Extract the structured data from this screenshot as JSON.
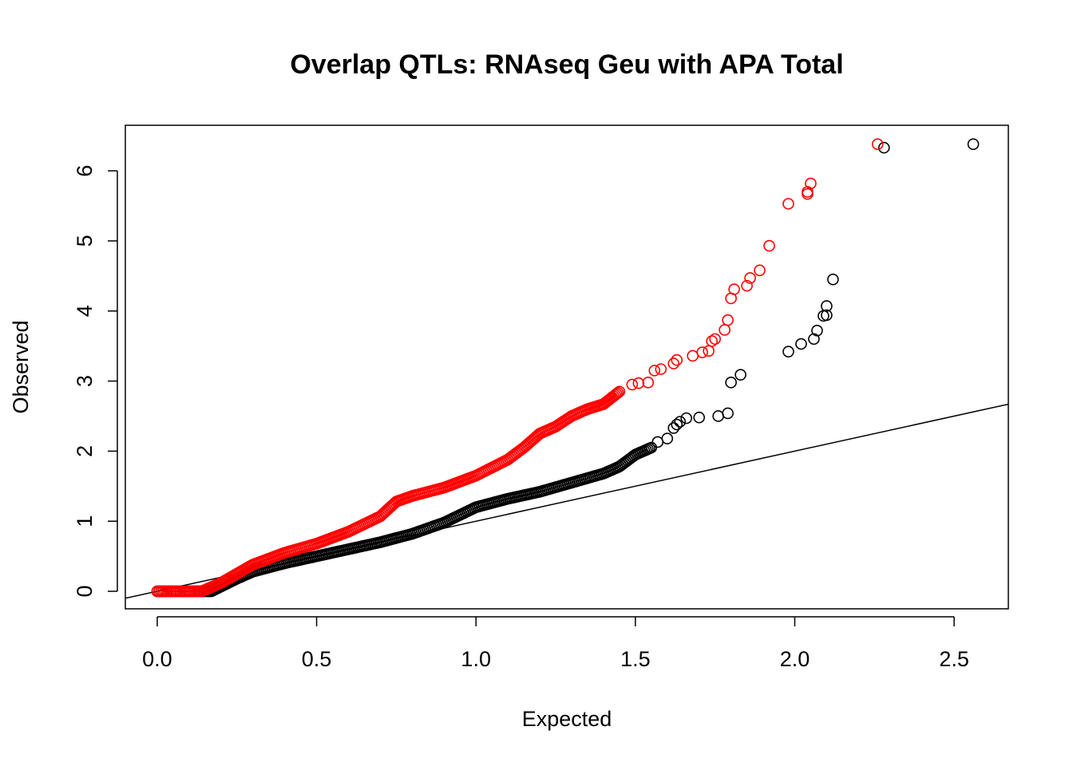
{
  "chart_data": {
    "type": "scatter",
    "title": "Overlap QTLs: RNAseq Geu with APA Total",
    "xlabel": "Expected",
    "ylabel": "Observed",
    "xlim": [
      -0.1,
      2.67
    ],
    "ylim": [
      -0.25,
      6.65
    ],
    "xticks": [
      "0.0",
      "0.5",
      "1.0",
      "1.5",
      "2.0",
      "2.5"
    ],
    "yticks": [
      "0",
      "1",
      "2",
      "3",
      "4",
      "5",
      "6"
    ],
    "grid": false,
    "legend": "none",
    "reference_line": {
      "intercept": 0,
      "slope": 1,
      "color": "#000000"
    },
    "series": [
      {
        "color": "#000000",
        "curve": [
          [
            0.0,
            0.0
          ],
          [
            0.17,
            0.0
          ],
          [
            0.25,
            0.18
          ],
          [
            0.3,
            0.28
          ],
          [
            0.4,
            0.4
          ],
          [
            0.5,
            0.5
          ],
          [
            0.6,
            0.6
          ],
          [
            0.7,
            0.7
          ],
          [
            0.8,
            0.82
          ],
          [
            0.9,
            0.98
          ],
          [
            1.0,
            1.2
          ],
          [
            1.1,
            1.32
          ],
          [
            1.2,
            1.42
          ],
          [
            1.3,
            1.55
          ],
          [
            1.4,
            1.68
          ],
          [
            1.45,
            1.78
          ],
          [
            1.5,
            1.95
          ],
          [
            1.55,
            2.05
          ]
        ],
        "points": [
          [
            1.57,
            2.13
          ],
          [
            1.6,
            2.18
          ],
          [
            1.62,
            2.33
          ],
          [
            1.63,
            2.38
          ],
          [
            1.64,
            2.42
          ],
          [
            1.66,
            2.47
          ],
          [
            1.7,
            2.48
          ],
          [
            1.76,
            2.5
          ],
          [
            1.79,
            2.54
          ],
          [
            1.8,
            2.98
          ],
          [
            1.83,
            3.09
          ],
          [
            1.98,
            3.42
          ],
          [
            2.02,
            3.53
          ],
          [
            2.06,
            3.6
          ],
          [
            2.07,
            3.72
          ],
          [
            2.09,
            3.93
          ],
          [
            2.1,
            3.94
          ],
          [
            2.1,
            4.07
          ],
          [
            2.12,
            4.45
          ],
          [
            2.28,
            6.33
          ],
          [
            2.56,
            6.38
          ]
        ]
      },
      {
        "color": "#ff0000",
        "curve": [
          [
            0.0,
            0.0
          ],
          [
            0.14,
            0.0
          ],
          [
            0.2,
            0.12
          ],
          [
            0.25,
            0.25
          ],
          [
            0.3,
            0.38
          ],
          [
            0.4,
            0.55
          ],
          [
            0.5,
            0.68
          ],
          [
            0.6,
            0.85
          ],
          [
            0.7,
            1.07
          ],
          [
            0.75,
            1.28
          ],
          [
            0.8,
            1.36
          ],
          [
            0.9,
            1.48
          ],
          [
            1.0,
            1.65
          ],
          [
            1.1,
            1.88
          ],
          [
            1.15,
            2.05
          ],
          [
            1.2,
            2.25
          ],
          [
            1.25,
            2.35
          ],
          [
            1.3,
            2.5
          ],
          [
            1.35,
            2.6
          ],
          [
            1.4,
            2.67
          ],
          [
            1.45,
            2.85
          ]
        ],
        "points": [
          [
            1.49,
            2.95
          ],
          [
            1.51,
            2.97
          ],
          [
            1.54,
            2.98
          ],
          [
            1.56,
            3.15
          ],
          [
            1.58,
            3.17
          ],
          [
            1.62,
            3.25
          ],
          [
            1.63,
            3.3
          ],
          [
            1.68,
            3.36
          ],
          [
            1.71,
            3.41
          ],
          [
            1.73,
            3.43
          ],
          [
            1.74,
            3.57
          ],
          [
            1.75,
            3.6
          ],
          [
            1.78,
            3.73
          ],
          [
            1.79,
            3.87
          ],
          [
            1.8,
            4.18
          ],
          [
            1.81,
            4.31
          ],
          [
            1.85,
            4.36
          ],
          [
            1.86,
            4.47
          ],
          [
            1.89,
            4.58
          ],
          [
            1.92,
            4.93
          ],
          [
            1.98,
            5.53
          ],
          [
            2.04,
            5.67
          ],
          [
            2.04,
            5.7
          ],
          [
            2.05,
            5.82
          ],
          [
            2.26,
            6.38
          ]
        ]
      }
    ]
  }
}
